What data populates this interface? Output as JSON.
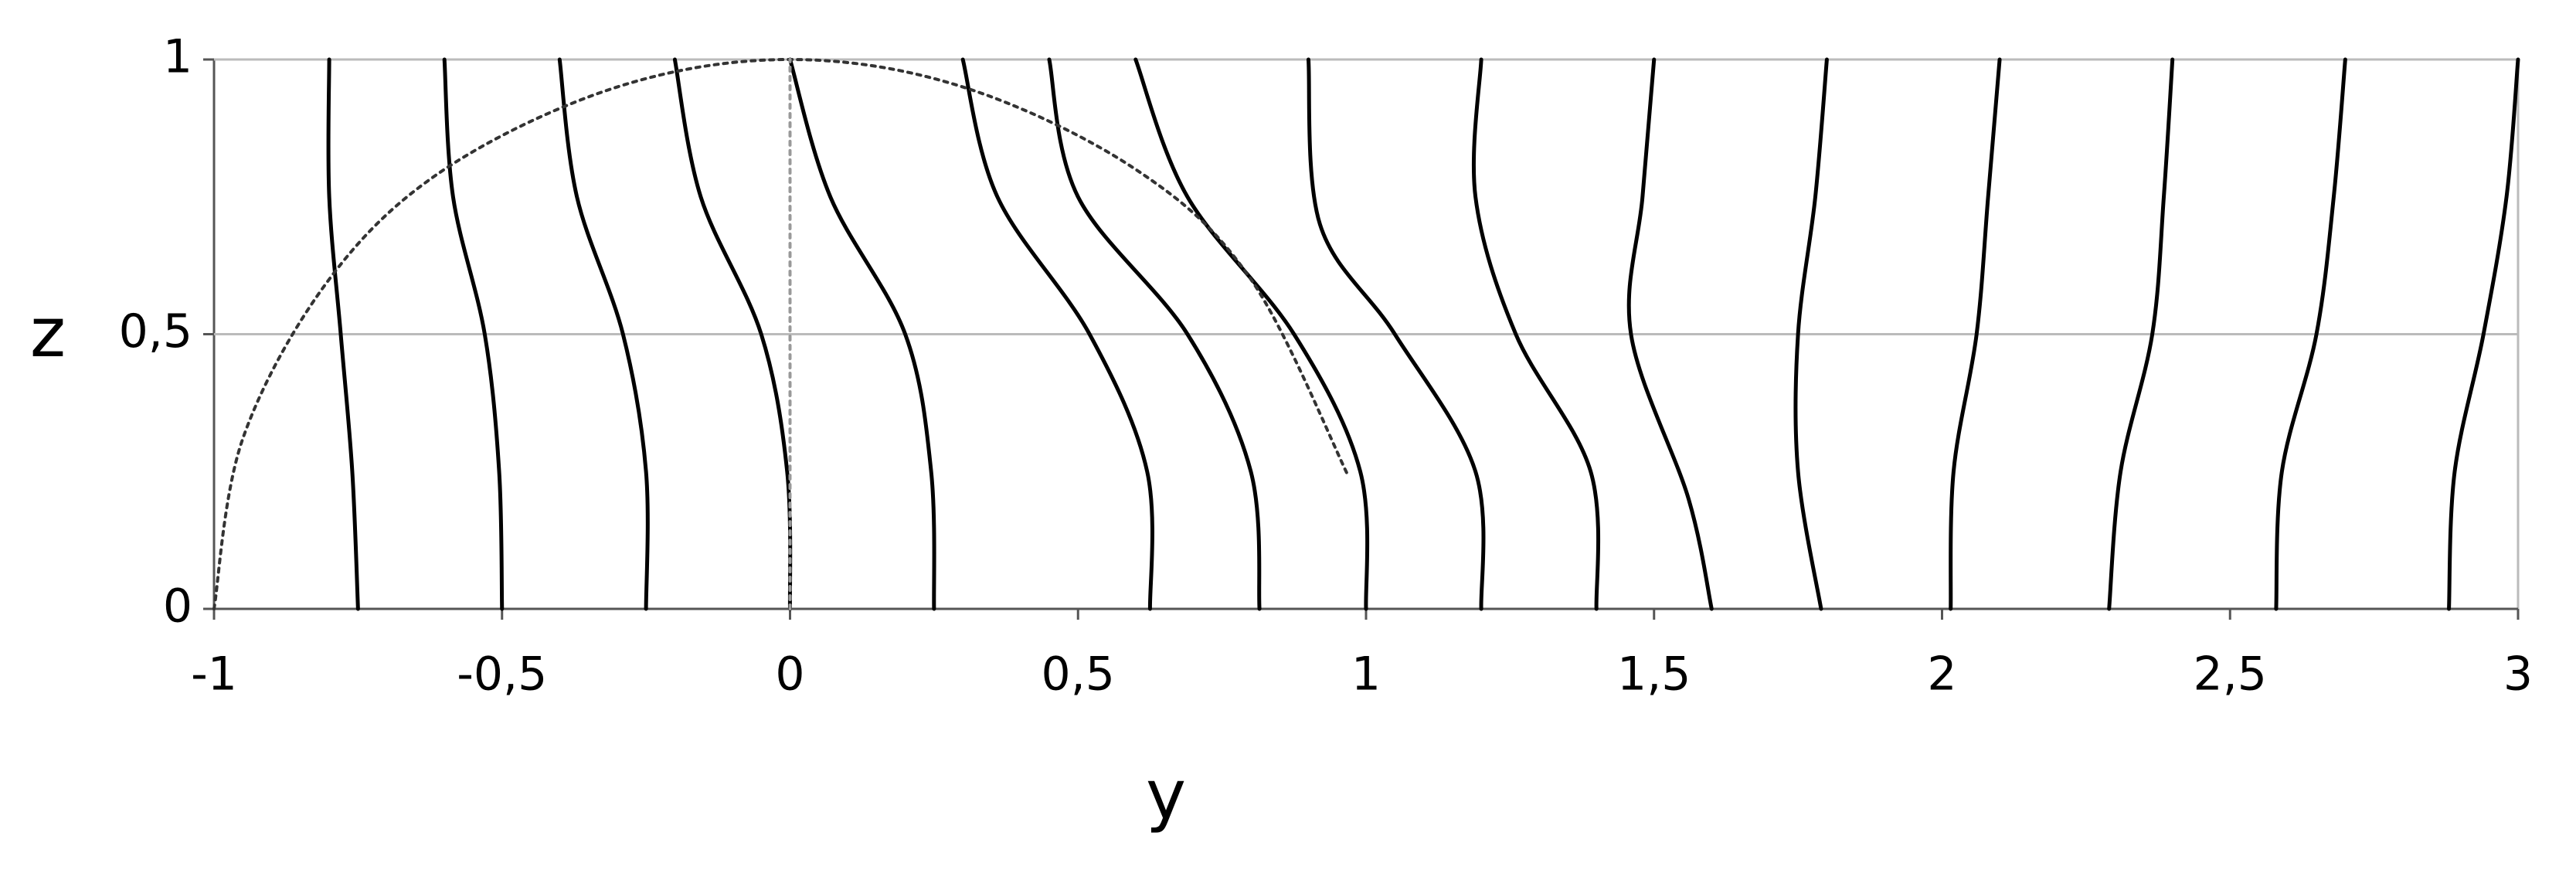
{
  "chart_data": {
    "type": "line",
    "xlabel": "y",
    "ylabel": "z",
    "xlim": [
      -1,
      3
    ],
    "ylim": [
      0,
      1
    ],
    "xticks": [
      -1,
      {
        "value": -0.5,
        "label": "-0,5"
      },
      0,
      {
        "value": 0.5,
        "label": "0,5"
      },
      1,
      {
        "value": 1.5,
        "label": "1,5"
      },
      2,
      {
        "value": 2.5,
        "label": "2,5"
      },
      3
    ],
    "yticks": [
      0,
      {
        "value": 0.5,
        "label": "0,5"
      },
      1
    ],
    "grid": true,
    "series": [
      {
        "color": "#000000",
        "style": "solid",
        "x": [
          -0.75,
          -0.76,
          -0.78,
          -0.8,
          -0.8
        ],
        "values": [
          0,
          0.25,
          0.5,
          0.75,
          1
        ]
      },
      {
        "color": "#000000",
        "style": "solid",
        "x": [
          -0.5,
          -0.505,
          -0.53,
          -0.585,
          -0.6
        ],
        "values": [
          0,
          0.25,
          0.5,
          0.75,
          1
        ]
      },
      {
        "color": "#000000",
        "style": "solid",
        "x": [
          -0.25,
          -0.25,
          -0.29,
          -0.37,
          -0.4
        ],
        "values": [
          0,
          0.25,
          0.5,
          0.75,
          1
        ]
      },
      {
        "color": "#000000",
        "style": "solid",
        "x": [
          0,
          -0.005,
          -0.05,
          -0.155,
          -0.2
        ],
        "values": [
          0,
          0.25,
          0.5,
          0.75,
          1
        ]
      },
      {
        "color": "#000000",
        "style": "solid",
        "x": [
          0.25,
          0.245,
          0.2,
          0.07,
          0
        ],
        "values": [
          0,
          0.25,
          0.5,
          0.75,
          1
        ]
      },
      {
        "color": "#000000",
        "style": "solid",
        "x": [
          0.625,
          0.62,
          0.52,
          0.36,
          0.3
        ],
        "values": [
          0,
          0.25,
          0.5,
          0.75,
          1
        ]
      },
      {
        "color": "#000000",
        "style": "solid",
        "x": [
          0.815,
          0.8,
          0.69,
          0.5,
          0.45
        ],
        "values": [
          0,
          0.25,
          0.5,
          0.75,
          1
        ]
      },
      {
        "color": "#000000",
        "style": "solid",
        "x": [
          1,
          0.99,
          0.875,
          0.69,
          0.6
        ],
        "values": [
          0,
          0.25,
          0.5,
          0.75,
          1
        ]
      },
      {
        "color": "#000000",
        "style": "solid",
        "x": [
          1.2,
          1.19,
          1.05,
          0.92,
          0.9
        ],
        "values": [
          0,
          0.25,
          0.5,
          0.7,
          1
        ]
      },
      {
        "color": "#000000",
        "style": "solid",
        "x": [
          1.4,
          1.39,
          1.26,
          1.19,
          1.2
        ],
        "values": [
          0,
          0.25,
          0.5,
          0.75,
          1
        ]
      },
      {
        "color": "#000000",
        "style": "solid",
        "x": [
          1.6,
          1.56,
          1.46,
          1.48,
          1.5
        ],
        "values": [
          0,
          0.2,
          0.5,
          0.75,
          1
        ]
      },
      {
        "color": "#000000",
        "style": "solid",
        "x": [
          1.79,
          1.75,
          1.75,
          1.78,
          1.8
        ],
        "values": [
          0,
          0.25,
          0.5,
          0.75,
          1
        ]
      },
      {
        "color": "#000000",
        "style": "solid",
        "x": [
          2.015,
          2.02,
          2.06,
          2.08,
          2.1
        ],
        "values": [
          0,
          0.25,
          0.5,
          0.75,
          1
        ]
      },
      {
        "color": "#000000",
        "style": "solid",
        "x": [
          2.29,
          2.31,
          2.365,
          2.385,
          2.4
        ],
        "values": [
          0,
          0.25,
          0.5,
          0.75,
          1
        ]
      },
      {
        "color": "#000000",
        "style": "solid",
        "x": [
          2.58,
          2.59,
          2.65,
          2.68,
          2.7
        ],
        "values": [
          0,
          0.25,
          0.5,
          0.75,
          1
        ]
      },
      {
        "color": "#000000",
        "style": "solid",
        "x": [
          2.88,
          2.89,
          2.94,
          2.98,
          3
        ],
        "values": [
          0,
          0.25,
          0.5,
          0.75,
          1
        ]
      },
      {
        "color": "#333333",
        "style": "dotted",
        "x": [
          -1,
          -0.95,
          -0.8,
          -0.6,
          -0.3,
          0,
          0.3,
          0.6,
          0.8,
          0.97
        ],
        "values": [
          0,
          0.31,
          0.6,
          0.8,
          0.95,
          1,
          0.95,
          0.8,
          0.6,
          0.24
        ]
      },
      {
        "color": "#999999",
        "style": "dotted",
        "x": [
          0,
          0
        ],
        "values": [
          0,
          1
        ]
      }
    ]
  }
}
